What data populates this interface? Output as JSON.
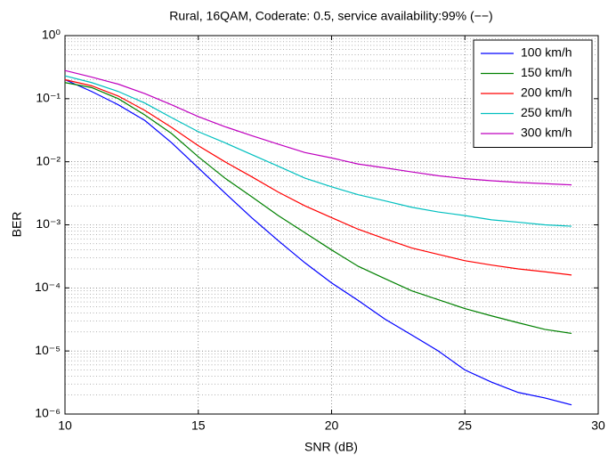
{
  "chart_data": {
    "type": "line",
    "title": "Rural, 16QAM, Coderate: 0.5, service availability:99% (−−)",
    "x_label": "SNR (dB)",
    "y_label": "BER",
    "x": [
      10,
      11,
      12,
      13,
      14,
      15,
      16,
      17,
      18,
      19,
      20,
      21,
      22,
      23,
      24,
      25,
      26,
      27,
      28,
      29
    ],
    "series": [
      {
        "name": "100 km/h",
        "color": "#0000ff",
        "values": [
          0.2,
          0.13,
          0.08,
          0.045,
          0.02,
          0.008,
          0.0032,
          0.0013,
          0.00056,
          0.00025,
          0.00012,
          6.3e-05,
          3.2e-05,
          1.8e-05,
          1e-05,
          5e-06,
          3.2e-06,
          2.2e-06,
          1.8e-06,
          1.4e-06
        ]
      },
      {
        "name": "150 km/h",
        "color": "#008000",
        "values": [
          0.18,
          0.15,
          0.1,
          0.055,
          0.028,
          0.012,
          0.0055,
          0.0028,
          0.0014,
          0.00075,
          0.0004,
          0.00022,
          0.00014,
          9e-05,
          6.5e-05,
          4.7e-05,
          3.6e-05,
          2.8e-05,
          2.2e-05,
          1.9e-05
        ]
      },
      {
        "name": "200 km/h",
        "color": "#ff0000",
        "values": [
          0.2,
          0.16,
          0.11,
          0.065,
          0.035,
          0.018,
          0.01,
          0.0058,
          0.0033,
          0.002,
          0.0013,
          0.00085,
          0.0006,
          0.00043,
          0.00034,
          0.00027,
          0.00023,
          0.0002,
          0.00018,
          0.00016
        ]
      },
      {
        "name": "250 km/h",
        "color": "#00bfbf",
        "values": [
          0.23,
          0.18,
          0.13,
          0.085,
          0.05,
          0.03,
          0.02,
          0.013,
          0.0085,
          0.0055,
          0.004,
          0.003,
          0.0024,
          0.0019,
          0.0016,
          0.0014,
          0.0012,
          0.0011,
          0.001,
          0.00095
        ]
      },
      {
        "name": "300 km/h",
        "color": "#bf00bf",
        "values": [
          0.28,
          0.22,
          0.17,
          0.12,
          0.08,
          0.052,
          0.036,
          0.026,
          0.019,
          0.014,
          0.0115,
          0.0092,
          0.008,
          0.0069,
          0.006,
          0.0054,
          0.005,
          0.0047,
          0.0045,
          0.0043
        ]
      }
    ],
    "xlim": [
      10,
      30
    ],
    "xticks": [
      10,
      15,
      20,
      25,
      30
    ],
    "ylim": [
      1e-06,
      1
    ],
    "y_scale": "log",
    "yticks": [
      {
        "value": 1e-06,
        "label": "10⁻⁶"
      },
      {
        "value": 1e-05,
        "label": "10⁻⁵"
      },
      {
        "value": 0.0001,
        "label": "10⁻⁴"
      },
      {
        "value": 0.001,
        "label": "10⁻³"
      },
      {
        "value": 0.01,
        "label": "10⁻²"
      },
      {
        "value": 0.1,
        "label": "10⁻¹"
      },
      {
        "value": 1,
        "label": "10⁰"
      }
    ],
    "grid": true,
    "legend": "northeast"
  }
}
